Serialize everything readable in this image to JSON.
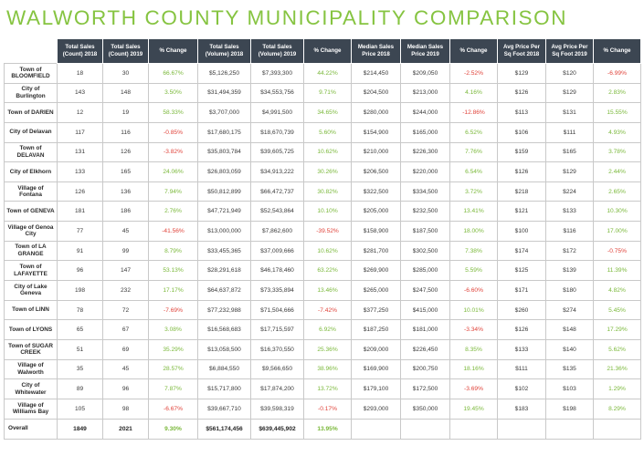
{
  "title": "WALWORTH COUNTY MUNICIPALITY COMPARISON",
  "headers": [
    "Total Sales (Count) 2018",
    "Total Sales (Count) 2019",
    "% Change",
    "Total Sales (Volume) 2018",
    "Total Sales (Volume) 2019",
    "% Change",
    "Median Sales Price 2018",
    "Median Sales Price 2019",
    "% Change",
    "Avg Price Per Sq Foot 2018",
    "Avg Price Per Sq Foot 2019",
    "% Change"
  ],
  "rows": [
    {
      "name": "Town of BLOOMFIELD",
      "c18": "18",
      "c19": "30",
      "cpct": "66.67%",
      "v18": "$5,126,250",
      "v19": "$7,393,300",
      "vpct": "44.22%",
      "m18": "$214,450",
      "m19": "$209,050",
      "mpct": "-2.52%",
      "a18": "$129",
      "a19": "$120",
      "apct": "-6.99%"
    },
    {
      "name": "City of Burlington",
      "c18": "143",
      "c19": "148",
      "cpct": "3.50%",
      "v18": "$31,494,359",
      "v19": "$34,553,756",
      "vpct": "9.71%",
      "m18": "$204,500",
      "m19": "$213,000",
      "mpct": "4.16%",
      "a18": "$126",
      "a19": "$129",
      "apct": "2.83%"
    },
    {
      "name": "Town of DARIEN",
      "c18": "12",
      "c19": "19",
      "cpct": "58.33%",
      "v18": "$3,707,000",
      "v19": "$4,991,500",
      "vpct": "34.65%",
      "m18": "$280,000",
      "m19": "$244,000",
      "mpct": "-12.86%",
      "a18": "$113",
      "a19": "$131",
      "apct": "15.55%"
    },
    {
      "name": "City of Delavan",
      "c18": "117",
      "c19": "116",
      "cpct": "-0.85%",
      "v18": "$17,680,175",
      "v19": "$18,670,739",
      "vpct": "5.60%",
      "m18": "$154,900",
      "m19": "$165,000",
      "mpct": "6.52%",
      "a18": "$106",
      "a19": "$111",
      "apct": "4.93%"
    },
    {
      "name": "Town of DELAVAN",
      "c18": "131",
      "c19": "126",
      "cpct": "-3.82%",
      "v18": "$35,803,784",
      "v19": "$39,605,725",
      "vpct": "10.62%",
      "m18": "$210,000",
      "m19": "$226,300",
      "mpct": "7.76%",
      "a18": "$159",
      "a19": "$165",
      "apct": "3.78%"
    },
    {
      "name": "City of Elkhorn",
      "c18": "133",
      "c19": "165",
      "cpct": "24.06%",
      "v18": "$26,803,059",
      "v19": "$34,913,222",
      "vpct": "30.26%",
      "m18": "$206,500",
      "m19": "$220,000",
      "mpct": "6.54%",
      "a18": "$126",
      "a19": "$129",
      "apct": "2.44%"
    },
    {
      "name": "Village of Fontana",
      "c18": "126",
      "c19": "136",
      "cpct": "7.94%",
      "v18": "$50,812,899",
      "v19": "$66,472,737",
      "vpct": "30.82%",
      "m18": "$322,500",
      "m19": "$334,500",
      "mpct": "3.72%",
      "a18": "$218",
      "a19": "$224",
      "apct": "2.65%"
    },
    {
      "name": "Town of GENEVA",
      "c18": "181",
      "c19": "186",
      "cpct": "2.76%",
      "v18": "$47,721,949",
      "v19": "$52,543,864",
      "vpct": "10.10%",
      "m18": "$205,000",
      "m19": "$232,500",
      "mpct": "13.41%",
      "a18": "$121",
      "a19": "$133",
      "apct": "10.30%"
    },
    {
      "name": "Village of Genoa City",
      "c18": "77",
      "c19": "45",
      "cpct": "-41.56%",
      "v18": "$13,000,000",
      "v19": "$7,862,600",
      "vpct": "-39.52%",
      "m18": "$158,900",
      "m19": "$187,500",
      "mpct": "18.00%",
      "a18": "$100",
      "a19": "$116",
      "apct": "17.00%"
    },
    {
      "name": "Town of LA GRANGE",
      "c18": "91",
      "c19": "99",
      "cpct": "8.79%",
      "v18": "$33,455,365",
      "v19": "$37,009,666",
      "vpct": "10.62%",
      "m18": "$281,700",
      "m19": "$302,500",
      "mpct": "7.38%",
      "a18": "$174",
      "a19": "$172",
      "apct": "-0.75%"
    },
    {
      "name": "Town of LAFAYETTE",
      "c18": "96",
      "c19": "147",
      "cpct": "53.13%",
      "v18": "$28,291,618",
      "v19": "$46,178,460",
      "vpct": "63.22%",
      "m18": "$269,900",
      "m19": "$285,000",
      "mpct": "5.59%",
      "a18": "$125",
      "a19": "$139",
      "apct": "11.39%"
    },
    {
      "name": "City of Lake Geneva",
      "c18": "198",
      "c19": "232",
      "cpct": "17.17%",
      "v18": "$64,637,872",
      "v19": "$73,335,894",
      "vpct": "13.46%",
      "m18": "$265,000",
      "m19": "$247,500",
      "mpct": "-6.60%",
      "a18": "$171",
      "a19": "$180",
      "apct": "4.82%"
    },
    {
      "name": "Town of LINN",
      "c18": "78",
      "c19": "72",
      "cpct": "-7.69%",
      "v18": "$77,232,988",
      "v19": "$71,504,666",
      "vpct": "-7.42%",
      "m18": "$377,250",
      "m19": "$415,000",
      "mpct": "10.01%",
      "a18": "$260",
      "a19": "$274",
      "apct": "5.45%"
    },
    {
      "name": "Town of LYONS",
      "c18": "65",
      "c19": "67",
      "cpct": "3.08%",
      "v18": "$16,568,683",
      "v19": "$17,715,597",
      "vpct": "6.92%",
      "m18": "$187,250",
      "m19": "$181,000",
      "mpct": "-3.34%",
      "a18": "$126",
      "a19": "$148",
      "apct": "17.29%"
    },
    {
      "name": "Town of SUGAR CREEK",
      "c18": "51",
      "c19": "69",
      "cpct": "35.29%",
      "v18": "$13,058,500",
      "v19": "$16,370,550",
      "vpct": "25.36%",
      "m18": "$209,000",
      "m19": "$226,450",
      "mpct": "8.35%",
      "a18": "$133",
      "a19": "$140",
      "apct": "5.62%"
    },
    {
      "name": "Village of Walworth",
      "c18": "35",
      "c19": "45",
      "cpct": "28.57%",
      "v18": "$6,884,550",
      "v19": "$9,566,650",
      "vpct": "38.96%",
      "m18": "$169,900",
      "m19": "$200,750",
      "mpct": "18.16%",
      "a18": "$111",
      "a19": "$135",
      "apct": "21.36%"
    },
    {
      "name": "City of Whitewater",
      "c18": "89",
      "c19": "96",
      "cpct": "7.87%",
      "v18": "$15,717,800",
      "v19": "$17,874,200",
      "vpct": "13.72%",
      "m18": "$179,100",
      "m19": "$172,500",
      "mpct": "-3.69%",
      "a18": "$102",
      "a19": "$103",
      "apct": "1.29%"
    },
    {
      "name": "Village of Williams Bay",
      "c18": "105",
      "c19": "98",
      "cpct": "-6.67%",
      "v18": "$39,667,710",
      "v19": "$39,598,319",
      "vpct": "-0.17%",
      "m18": "$293,000",
      "m19": "$350,000",
      "mpct": "19.45%",
      "a18": "$183",
      "a19": "$198",
      "apct": "8.29%"
    }
  ],
  "total": {
    "name": "Overall",
    "c18": "1849",
    "c19": "2021",
    "cpct": "9.30%",
    "v18": "$561,174,456",
    "v19": "$639,445,902",
    "vpct": "13.95%"
  },
  "colors": {
    "title_green": "#86c441",
    "header_bg": "#3c4652",
    "positive": "#7ab83a",
    "negative": "#e0433a"
  }
}
